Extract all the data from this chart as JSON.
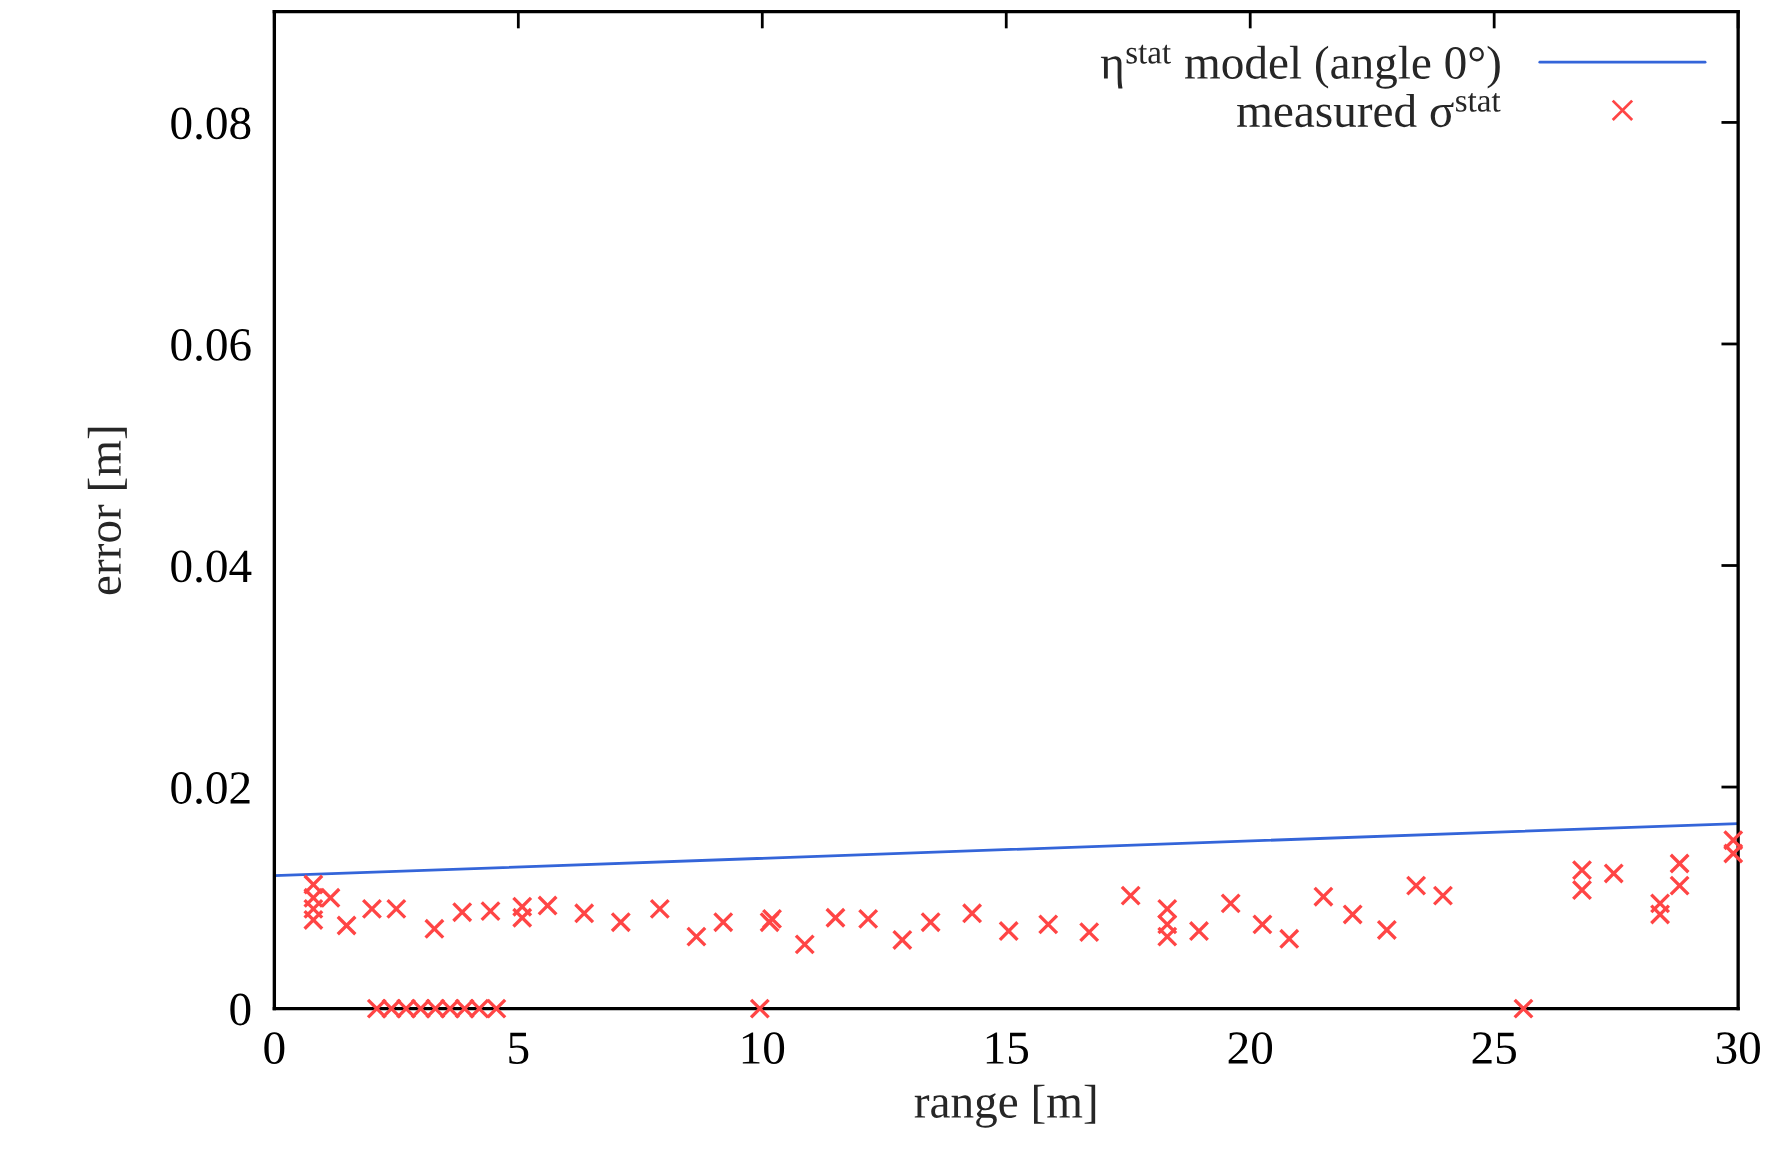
{
  "chart_data": {
    "type": "scatter",
    "xlabel": "range [m]",
    "ylabel": "error [m]",
    "xlim": [
      0,
      30
    ],
    "xticks": [
      0,
      5,
      10,
      15,
      20,
      25,
      30
    ],
    "ylim": [
      0,
      0.09
    ],
    "yticks": [
      0,
      0.02,
      0.04,
      0.06,
      0.08
    ],
    "grid": false,
    "legend": "top right",
    "series": [
      {
        "name": "η$^{stat}$ model (angle 0°)",
        "type": "line",
        "color": "#3465d9",
        "line_style": "solid",
        "x": [
          0,
          30
        ],
        "values": [
          0.012,
          0.0167
        ]
      },
      {
        "name": "measured σ$^{stat}$",
        "marker": "cross",
        "color": "#ff4545",
        "x": [
          0.8,
          0.8,
          0.8,
          0.8,
          1.15,
          1.48,
          2.0,
          2.5,
          3.28,
          3.85,
          4.43,
          5.08,
          5.08,
          5.6,
          6.35,
          7.1,
          7.9,
          8.65,
          9.2,
          10.15,
          10.2,
          10.87,
          11.5,
          12.17,
          12.87,
          13.45,
          14.3,
          15.05,
          15.86,
          16.7,
          17.55,
          18.3,
          18.3,
          18.3,
          18.95,
          19.6,
          20.25,
          20.8,
          21.5,
          22.1,
          22.8,
          23.4,
          23.95,
          26.8,
          26.8,
          27.45,
          28.4,
          28.4,
          28.8,
          28.8,
          29.9,
          29.9,
          2.1,
          2.4,
          2.7,
          3.0,
          3.3,
          3.6,
          3.9,
          4.2,
          4.55,
          9.95,
          25.6
        ],
        "values": [
          0.0112,
          0.01,
          0.009,
          0.008,
          0.01,
          0.0075,
          0.009,
          0.009,
          0.0072,
          0.0087,
          0.0088,
          0.0092,
          0.0082,
          0.0093,
          0.0086,
          0.0078,
          0.009,
          0.0065,
          0.0078,
          0.0078,
          0.0081,
          0.0058,
          0.0082,
          0.0081,
          0.0062,
          0.0078,
          0.0086,
          0.007,
          0.0076,
          0.0069,
          0.0102,
          0.009,
          0.0076,
          0.0065,
          0.007,
          0.0095,
          0.0076,
          0.0063,
          0.0101,
          0.0085,
          0.0071,
          0.0111,
          0.0102,
          0.0125,
          0.0107,
          0.0122,
          0.0095,
          0.0085,
          0.0111,
          0.0131,
          0.0152,
          0.014,
          0,
          0,
          0,
          0,
          0,
          0,
          0,
          0,
          0,
          0,
          0
        ]
      }
    ]
  }
}
